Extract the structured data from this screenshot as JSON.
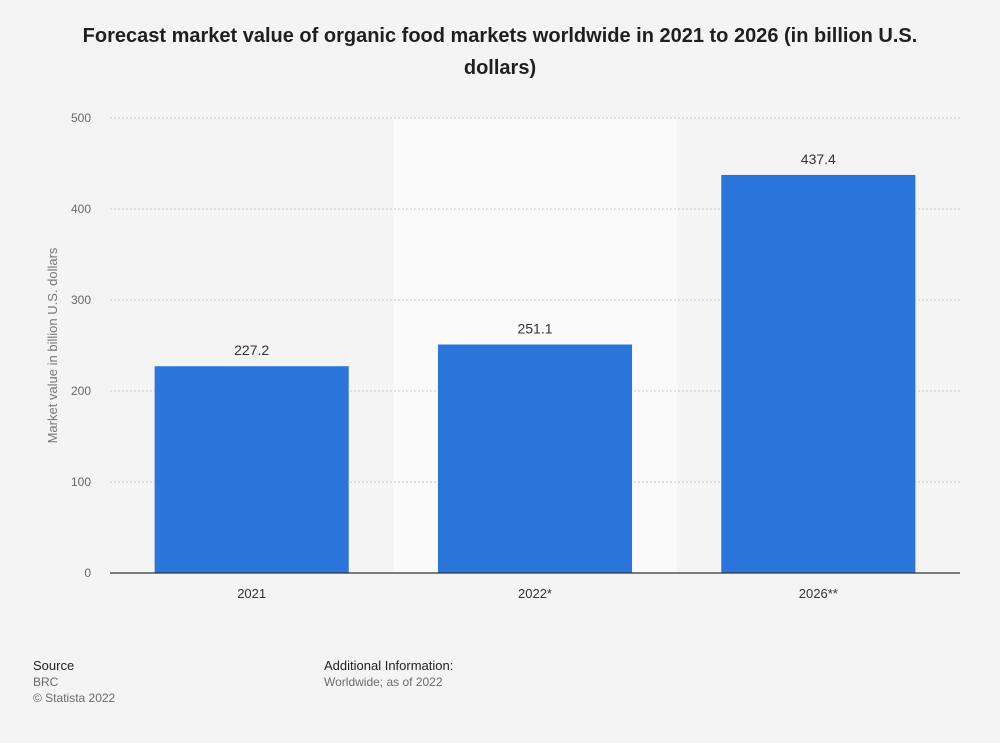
{
  "chart_data": {
    "type": "bar",
    "title": "Forecast market value of organic food markets worldwide in 2021 to 2026 (in billion U.S. dollars)",
    "categories": [
      "2021",
      "2022*",
      "2026**"
    ],
    "values": [
      227.2,
      251.1,
      437.4
    ],
    "value_labels": [
      "227.2",
      "251.1",
      "437.4"
    ],
    "xlabel": "",
    "ylabel": "Market value in billion U.S. dollars",
    "ylim": [
      0,
      500
    ],
    "yticks": [
      "0",
      "100",
      "200",
      "300",
      "400",
      "500"
    ],
    "grid": true,
    "highlight_category": "2022*",
    "colors": {
      "bar": "#2a75db",
      "grid": "#c8c8c8",
      "axis": "#333333",
      "highlight_band": "#fafafa"
    }
  },
  "footer": {
    "source_heading": "Source",
    "source_name": "BRC",
    "copyright": "© Statista 2022",
    "additional_heading": "Additional Information:",
    "additional_text": "Worldwide; as of 2022"
  }
}
